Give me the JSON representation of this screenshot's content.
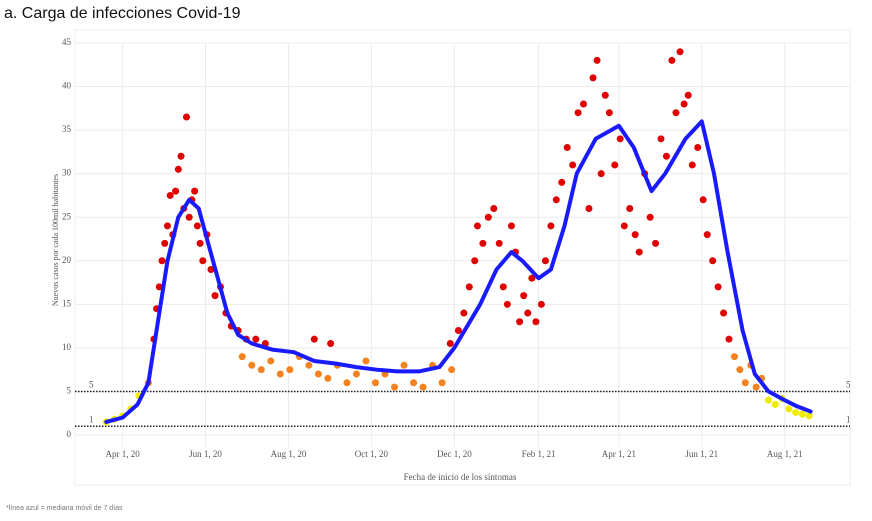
{
  "chart_data": {
    "type": "scatter",
    "title": "a. Carga de infecciones Covid-19",
    "ylabel": "Nuevos casos por cada 100mil habitantes",
    "xlabel": "Fecha de inicio de los síntomas",
    "footnote": "*línea azul = mediana móvil de 7 días",
    "xlim": [
      "2020-02-26",
      "2021-09-18"
    ],
    "ylim": [
      0,
      45
    ],
    "yticks": [
      0,
      5,
      10,
      15,
      20,
      25,
      30,
      35,
      40,
      45
    ],
    "xticks": [
      {
        "value": "2020-04-01",
        "label": "Apr 1, 20"
      },
      {
        "value": "2020-06-01",
        "label": "Jun 1, 20"
      },
      {
        "value": "2020-08-01",
        "label": "Aug 1, 20"
      },
      {
        "value": "2020-10-01",
        "label": "Oct 1, 20"
      },
      {
        "value": "2020-12-01",
        "label": "Dec 1, 20"
      },
      {
        "value": "2021-02-01",
        "label": "Feb 1, 21"
      },
      {
        "value": "2021-04-01",
        "label": "Apr 1, 21"
      },
      {
        "value": "2021-06-01",
        "label": "Jun 1, 21"
      },
      {
        "value": "2021-08-01",
        "label": "Aug 1, 21"
      }
    ],
    "grid": true,
    "reference_lines": [
      5,
      1
    ],
    "series": [
      {
        "color": "#e00000",
        "x": [
          "2020-04-24",
          "2020-04-26",
          "2020-04-28",
          "2020-04-30",
          "2020-05-02",
          "2020-05-04",
          "2020-05-06",
          "2020-05-08",
          "2020-05-10",
          "2020-05-12",
          "2020-05-14",
          "2020-05-16",
          "2020-05-18",
          "2020-05-20",
          "2020-05-22",
          "2020-05-24",
          "2020-05-26",
          "2020-05-28",
          "2020-05-30",
          "2020-06-02",
          "2020-06-05",
          "2020-06-08",
          "2020-06-12",
          "2020-06-16",
          "2020-06-20",
          "2020-06-25",
          "2020-07-01",
          "2020-07-08",
          "2020-07-15",
          "2020-08-20",
          "2020-09-01",
          "2020-11-28",
          "2020-12-04",
          "2020-12-08",
          "2020-12-12",
          "2020-12-16",
          "2020-12-18",
          "2020-12-22",
          "2020-12-26",
          "2020-12-30",
          "2021-01-03",
          "2021-01-06",
          "2021-01-09",
          "2021-01-12",
          "2021-01-15",
          "2021-01-18",
          "2021-01-21",
          "2021-01-24",
          "2021-01-27",
          "2021-01-30",
          "2021-02-03",
          "2021-02-06",
          "2021-02-10",
          "2021-02-14",
          "2021-02-18",
          "2021-02-22",
          "2021-02-26",
          "2021-03-02",
          "2021-03-06",
          "2021-03-10",
          "2021-03-13",
          "2021-03-16",
          "2021-03-19",
          "2021-03-22",
          "2021-03-25",
          "2021-03-29",
          "2021-04-02",
          "2021-04-05",
          "2021-04-09",
          "2021-04-13",
          "2021-04-16",
          "2021-04-20",
          "2021-04-24",
          "2021-04-28",
          "2021-05-02",
          "2021-05-06",
          "2021-05-10",
          "2021-05-13",
          "2021-05-16",
          "2021-05-19",
          "2021-05-22",
          "2021-05-25",
          "2021-05-29",
          "2021-06-02",
          "2021-06-05",
          "2021-06-09",
          "2021-06-13",
          "2021-06-17",
          "2021-06-21"
        ],
        "values": [
          11,
          14.5,
          17,
          20,
          22,
          24,
          27.5,
          23,
          28,
          30.5,
          32,
          26,
          36.5,
          25,
          27,
          28,
          24,
          22,
          20,
          23,
          19,
          16,
          17,
          14,
          12.5,
          12,
          11,
          11,
          10.5,
          11,
          10.5,
          10.5,
          12,
          14,
          17,
          20,
          24,
          22,
          25,
          26,
          22,
          17,
          15,
          24,
          21,
          13,
          16,
          14,
          18,
          13,
          15,
          20,
          24,
          27,
          29,
          33,
          31,
          37,
          38,
          26,
          41,
          43,
          30,
          39,
          37,
          31,
          34,
          24,
          26,
          23,
          21,
          30,
          25,
          22,
          34,
          32,
          43,
          37,
          44,
          38,
          39,
          31,
          33,
          27,
          23,
          20,
          17,
          14,
          11
        ]
      },
      {
        "color": "#f58220",
        "x": [
          "2020-04-20",
          "2020-06-28",
          "2020-07-05",
          "2020-07-12",
          "2020-07-19",
          "2020-07-26",
          "2020-08-02",
          "2020-08-09",
          "2020-08-16",
          "2020-08-23",
          "2020-08-30",
          "2020-09-06",
          "2020-09-13",
          "2020-09-20",
          "2020-09-27",
          "2020-10-04",
          "2020-10-11",
          "2020-10-18",
          "2020-10-25",
          "2020-11-01",
          "2020-11-08",
          "2020-11-15",
          "2020-11-22",
          "2020-11-29",
          "2021-06-25",
          "2021-06-29",
          "2021-07-03",
          "2021-07-07",
          "2021-07-11",
          "2021-07-15"
        ],
        "values": [
          6,
          9,
          8,
          7.5,
          8.5,
          7,
          7.5,
          9,
          8,
          7,
          6.5,
          8,
          6,
          7,
          8.5,
          6,
          7,
          5.5,
          8,
          6,
          5.5,
          8,
          6,
          7.5,
          9,
          7.5,
          6,
          8,
          5.5,
          6.5
        ]
      },
      {
        "color": "#f0ec00",
        "x": [
          "2020-03-20",
          "2020-03-26",
          "2020-04-01",
          "2020-04-07",
          "2020-04-13",
          "2021-07-20",
          "2021-07-25",
          "2021-07-30",
          "2021-08-04",
          "2021-08-09",
          "2021-08-14",
          "2021-08-19"
        ],
        "values": [
          1.5,
          1.8,
          2.2,
          3,
          4.5,
          4,
          3.5,
          4.2,
          3,
          2.6,
          2.4,
          2.2
        ]
      }
    ],
    "line": {
      "color": "#1a1aff",
      "x": [
        "2020-03-20",
        "2020-04-01",
        "2020-04-12",
        "2020-04-20",
        "2020-04-27",
        "2020-05-04",
        "2020-05-12",
        "2020-05-20",
        "2020-05-27",
        "2020-06-03",
        "2020-06-10",
        "2020-06-17",
        "2020-06-25",
        "2020-07-05",
        "2020-07-20",
        "2020-08-05",
        "2020-08-20",
        "2020-09-05",
        "2020-09-20",
        "2020-10-05",
        "2020-10-20",
        "2020-11-05",
        "2020-11-20",
        "2020-12-01",
        "2020-12-20",
        "2021-01-01",
        "2021-01-12",
        "2021-01-20",
        "2021-02-01",
        "2021-02-10",
        "2021-02-20",
        "2021-03-01",
        "2021-03-15",
        "2021-04-01",
        "2021-04-12",
        "2021-04-25",
        "2021-05-05",
        "2021-05-20",
        "2021-06-01",
        "2021-06-10",
        "2021-06-20",
        "2021-07-01",
        "2021-07-10",
        "2021-07-20",
        "2021-08-01",
        "2021-08-10",
        "2021-08-20"
      ],
      "values": [
        1.5,
        2,
        3.5,
        6,
        13,
        20,
        25,
        27,
        26,
        22,
        18,
        14,
        11.5,
        10.5,
        9.8,
        9.5,
        8.5,
        8.2,
        7.8,
        7.5,
        7.3,
        7.3,
        7.8,
        10,
        15,
        19,
        21,
        20,
        18,
        19,
        24,
        30,
        34,
        35.5,
        33,
        28,
        30,
        34,
        36,
        30,
        21,
        12,
        7,
        5,
        4,
        3.3,
        2.7
      ]
    }
  }
}
